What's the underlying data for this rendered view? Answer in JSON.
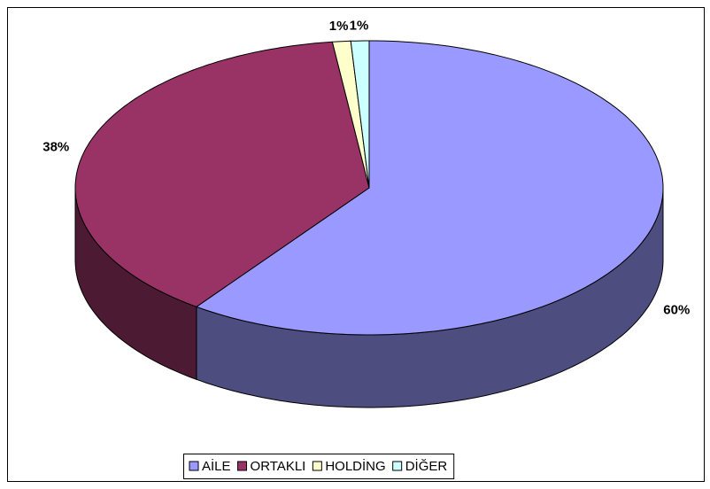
{
  "chart_data": {
    "type": "pie",
    "categories": [
      "AİLE",
      "ORTAKLI",
      "HOLDİNG",
      "DİĞER"
    ],
    "values": [
      60,
      38,
      1,
      1
    ],
    "value_labels": [
      "60%",
      "38%",
      "1%",
      "1%"
    ],
    "colors": [
      "#9999ff",
      "#993366",
      "#ffffcc",
      "#ccffff"
    ],
    "legend": "bottom"
  }
}
